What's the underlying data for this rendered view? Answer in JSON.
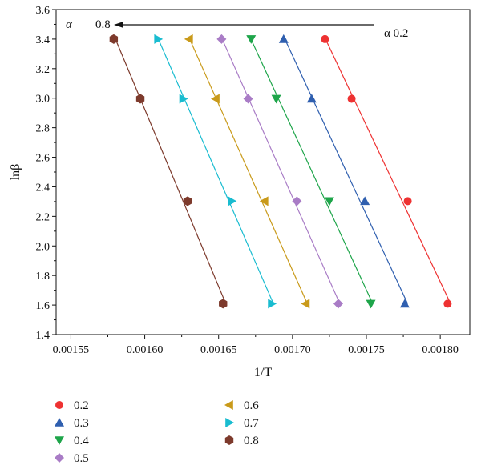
{
  "chart_data": {
    "type": "scatter",
    "xlabel": "1/T",
    "ylabel": "lnβ",
    "xlim": [
      0.00154,
      0.00182
    ],
    "ylim": [
      1.4,
      3.6
    ],
    "xticks": [
      "0.00155",
      "0.00160",
      "0.00165",
      "0.00170",
      "0.00175",
      "0.00180"
    ],
    "yticks": [
      "1.4",
      "1.6",
      "1.8",
      "2.0",
      "2.2",
      "2.4",
      "2.6",
      "2.8",
      "3.0",
      "3.2",
      "3.4",
      "3.6"
    ],
    "legend_position": "below",
    "annotations": {
      "alpha_symbol": "α",
      "alpha_left_value": "0.8",
      "alpha_right_label": "α  0.2",
      "arrow_direction": "right-to-left"
    },
    "series": [
      {
        "name": "0.2",
        "color": "#ee3232",
        "marker": "circle",
        "points": [
          [
            0.001722,
            3.4
          ],
          [
            0.00174,
            2.996
          ],
          [
            0.001778,
            2.303
          ],
          [
            0.001805,
            1.609
          ]
        ]
      },
      {
        "name": "0.3",
        "color": "#2f5faf",
        "marker": "triangle-up",
        "points": [
          [
            0.001694,
            3.4
          ],
          [
            0.001713,
            2.996
          ],
          [
            0.001749,
            2.303
          ],
          [
            0.001776,
            1.609
          ]
        ]
      },
      {
        "name": "0.4",
        "color": "#1ea54a",
        "marker": "triangle-down",
        "points": [
          [
            0.001672,
            3.4
          ],
          [
            0.001689,
            2.996
          ],
          [
            0.001725,
            2.303
          ],
          [
            0.001753,
            1.609
          ]
        ]
      },
      {
        "name": "0.5",
        "color": "#a97cc6",
        "marker": "diamond",
        "points": [
          [
            0.001652,
            3.4
          ],
          [
            0.00167,
            2.996
          ],
          [
            0.001703,
            2.303
          ],
          [
            0.001731,
            1.609
          ]
        ]
      },
      {
        "name": "0.6",
        "color": "#c99a1a",
        "marker": "triangle-left",
        "points": [
          [
            0.00163,
            3.4
          ],
          [
            0.001648,
            2.996
          ],
          [
            0.001681,
            2.303
          ],
          [
            0.001709,
            1.609
          ]
        ]
      },
      {
        "name": "0.7",
        "color": "#19bcd0",
        "marker": "triangle-right",
        "points": [
          [
            0.001609,
            3.4
          ],
          [
            0.001626,
            2.996
          ],
          [
            0.001659,
            2.303
          ],
          [
            0.001686,
            1.609
          ]
        ]
      },
      {
        "name": "0.8",
        "color": "#7d3a2c",
        "marker": "hexagon",
        "points": [
          [
            0.001579,
            3.4
          ],
          [
            0.001597,
            2.996
          ],
          [
            0.001629,
            2.303
          ],
          [
            0.001653,
            1.609
          ]
        ]
      }
    ]
  }
}
